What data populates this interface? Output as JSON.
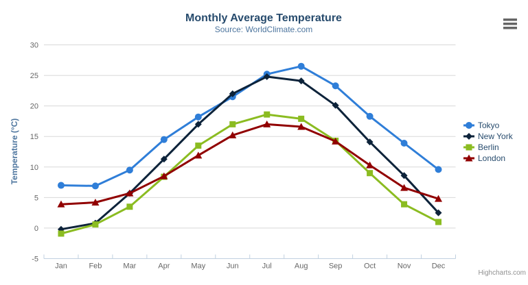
{
  "chart_data": {
    "type": "line",
    "title": "Monthly Average Temperature",
    "subtitle": "Source: WorldClimate.com",
    "xlabel": "",
    "ylabel": "Temperature (°C)",
    "categories": [
      "Jan",
      "Feb",
      "Mar",
      "Apr",
      "May",
      "Jun",
      "Jul",
      "Aug",
      "Sep",
      "Oct",
      "Nov",
      "Dec"
    ],
    "ylim": [
      -5,
      30
    ],
    "ytick_step": 5,
    "grid": true,
    "legend_position": "right",
    "series": [
      {
        "name": "Tokyo",
        "color": "#2f7ed8",
        "marker": "circle",
        "values": [
          7.0,
          6.9,
          9.5,
          14.5,
          18.2,
          21.5,
          25.2,
          26.5,
          23.3,
          18.3,
          13.9,
          9.6
        ]
      },
      {
        "name": "New York",
        "color": "#0d233a",
        "marker": "diamond",
        "values": [
          -0.2,
          0.8,
          5.7,
          11.3,
          17.0,
          22.0,
          24.8,
          24.1,
          20.1,
          14.1,
          8.6,
          2.5
        ]
      },
      {
        "name": "Berlin",
        "color": "#8bbc21",
        "marker": "square",
        "values": [
          -0.9,
          0.6,
          3.5,
          8.4,
          13.5,
          17.0,
          18.6,
          17.9,
          14.3,
          9.0,
          3.9,
          1.0
        ]
      },
      {
        "name": "London",
        "color": "#910000",
        "marker": "triangle",
        "values": [
          3.9,
          4.2,
          5.7,
          8.5,
          11.9,
          15.2,
          17.0,
          16.6,
          14.2,
          10.3,
          6.6,
          4.8
        ]
      }
    ],
    "credits_text": "Highcharts.com"
  },
  "theme": {
    "title_color": "#274b6d",
    "subtitle_color": "#4d759e",
    "axis_title_color": "#4d759e",
    "tick_label_color": "#666666",
    "legend_text_color": "#274b6d",
    "grid_color": "#d8d8d8",
    "axis_line_color": "#c0d0e0",
    "credits_color": "#909090",
    "background_color": "#ffffff"
  },
  "menu": {
    "icon": "hamburger-icon"
  }
}
